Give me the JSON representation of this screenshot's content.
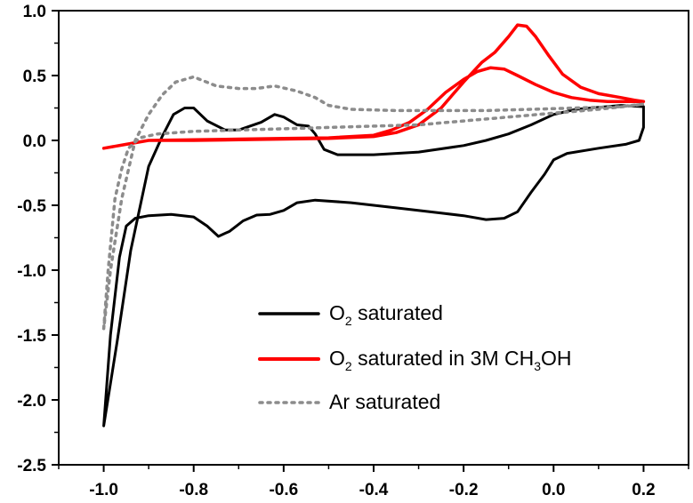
{
  "chart_data": {
    "type": "line",
    "title": "",
    "xlabel": "",
    "ylabel": "",
    "xlim": [
      -1.1,
      0.3
    ],
    "ylim": [
      -2.5,
      1.0
    ],
    "x_ticks": [
      -1.0,
      -0.8,
      -0.6,
      -0.4,
      -0.2,
      0.0,
      0.2
    ],
    "x_tick_labels": [
      "-1.0",
      "-0.8",
      "-0.6",
      "-0.4",
      "-0.2",
      "0.0",
      "0.2"
    ],
    "y_ticks": [
      1.0,
      0.5,
      0.0,
      -0.5,
      -1.0,
      -1.5,
      -2.0,
      -2.5
    ],
    "y_tick_labels": [
      "1.0",
      "0.5",
      "0.0",
      "-0.5",
      "-1.0",
      "-1.5",
      "-2.0",
      "-2.5"
    ],
    "grid": false,
    "legend_position": "bottom-right",
    "legend": [
      {
        "main": "O",
        "sub": "2",
        "rest": " saturated",
        "sub2": "",
        "tail": "",
        "series": 0
      },
      {
        "main": "O",
        "sub": "2",
        "rest": " saturated in 3M CH",
        "sub2": "3",
        "tail": "OH",
        "series": 1
      },
      {
        "main": "Ar saturated",
        "sub": "",
        "rest": "",
        "sub2": "",
        "tail": "",
        "series": 2
      }
    ],
    "series": [
      {
        "color": "#000000",
        "style": "solid",
        "points": [
          [
            -1.0,
            -2.2
          ],
          [
            -0.985,
            -1.5
          ],
          [
            -0.965,
            -0.9
          ],
          [
            -0.95,
            -0.66
          ],
          [
            -0.93,
            -0.6
          ],
          [
            -0.9,
            -0.58
          ],
          [
            -0.85,
            -0.57
          ],
          [
            -0.8,
            -0.59
          ],
          [
            -0.77,
            -0.66
          ],
          [
            -0.745,
            -0.74
          ],
          [
            -0.72,
            -0.7
          ],
          [
            -0.69,
            -0.62
          ],
          [
            -0.66,
            -0.575
          ],
          [
            -0.63,
            -0.57
          ],
          [
            -0.6,
            -0.54
          ],
          [
            -0.57,
            -0.48
          ],
          [
            -0.53,
            -0.46
          ],
          [
            -0.45,
            -0.48
          ],
          [
            -0.35,
            -0.52
          ],
          [
            -0.25,
            -0.56
          ],
          [
            -0.2,
            -0.58
          ],
          [
            -0.15,
            -0.61
          ],
          [
            -0.11,
            -0.6
          ],
          [
            -0.08,
            -0.55
          ],
          [
            -0.05,
            -0.4
          ],
          [
            -0.02,
            -0.26
          ],
          [
            0.0,
            -0.15
          ],
          [
            0.03,
            -0.1
          ],
          [
            0.1,
            -0.06
          ],
          [
            0.16,
            -0.03
          ],
          [
            0.19,
            0.0
          ],
          [
            0.2,
            0.1
          ],
          [
            0.2,
            0.26
          ],
          [
            0.15,
            0.27
          ],
          [
            0.05,
            0.24
          ],
          [
            0.0,
            0.2
          ],
          [
            -0.05,
            0.12
          ],
          [
            -0.1,
            0.05
          ],
          [
            -0.15,
            0.0
          ],
          [
            -0.2,
            -0.04
          ],
          [
            -0.3,
            -0.09
          ],
          [
            -0.4,
            -0.11
          ],
          [
            -0.48,
            -0.11
          ],
          [
            -0.51,
            -0.07
          ],
          [
            -0.53,
            0.05
          ],
          [
            -0.545,
            0.11
          ],
          [
            -0.57,
            0.12
          ],
          [
            -0.6,
            0.18
          ],
          [
            -0.62,
            0.2
          ],
          [
            -0.65,
            0.14
          ],
          [
            -0.7,
            0.08
          ],
          [
            -0.73,
            0.08
          ],
          [
            -0.77,
            0.15
          ],
          [
            -0.8,
            0.25
          ],
          [
            -0.82,
            0.25
          ],
          [
            -0.845,
            0.2
          ],
          [
            -0.87,
            0.03
          ],
          [
            -0.9,
            -0.2
          ],
          [
            -0.94,
            -0.85
          ],
          [
            -0.97,
            -1.55
          ],
          [
            -1.0,
            -2.2
          ]
        ]
      },
      {
        "color": "#ff0000",
        "style": "solid",
        "points": [
          [
            -1.0,
            -0.06
          ],
          [
            -0.95,
            -0.03
          ],
          [
            -0.9,
            0.0
          ],
          [
            -0.85,
            0.0
          ],
          [
            -0.8,
            0.0
          ],
          [
            -0.7,
            0.005
          ],
          [
            -0.6,
            0.01
          ],
          [
            -0.5,
            0.015
          ],
          [
            -0.4,
            0.03
          ],
          [
            -0.35,
            0.06
          ],
          [
            -0.3,
            0.12
          ],
          [
            -0.25,
            0.25
          ],
          [
            -0.2,
            0.45
          ],
          [
            -0.16,
            0.6
          ],
          [
            -0.13,
            0.68
          ],
          [
            -0.1,
            0.8
          ],
          [
            -0.08,
            0.89
          ],
          [
            -0.06,
            0.88
          ],
          [
            -0.04,
            0.8
          ],
          [
            -0.01,
            0.65
          ],
          [
            0.02,
            0.51
          ],
          [
            0.06,
            0.41
          ],
          [
            0.1,
            0.36
          ],
          [
            0.15,
            0.33
          ],
          [
            0.18,
            0.31
          ],
          [
            0.2,
            0.3
          ],
          [
            0.17,
            0.3
          ],
          [
            0.12,
            0.3
          ],
          [
            0.08,
            0.31
          ],
          [
            0.04,
            0.33
          ],
          [
            0.0,
            0.37
          ],
          [
            -0.04,
            0.43
          ],
          [
            -0.08,
            0.5
          ],
          [
            -0.11,
            0.55
          ],
          [
            -0.14,
            0.56
          ],
          [
            -0.17,
            0.53
          ],
          [
            -0.2,
            0.47
          ],
          [
            -0.24,
            0.37
          ],
          [
            -0.28,
            0.24
          ],
          [
            -0.32,
            0.14
          ],
          [
            -0.36,
            0.08
          ],
          [
            -0.4,
            0.04
          ],
          [
            -0.5,
            0.02
          ],
          [
            -0.6,
            0.015
          ],
          [
            -0.7,
            0.01
          ],
          [
            -0.8,
            0.005
          ],
          [
            -0.9,
            0.0
          ],
          [
            -0.95,
            -0.03
          ],
          [
            -1.0,
            -0.06
          ]
        ]
      },
      {
        "color": "#8c8c8c",
        "style": "dotted",
        "points": [
          [
            -1.0,
            -1.45
          ],
          [
            -0.99,
            -1.0
          ],
          [
            -0.975,
            -0.45
          ],
          [
            -0.96,
            -0.22
          ],
          [
            -0.945,
            -0.06
          ],
          [
            -0.92,
            0.02
          ],
          [
            -0.88,
            0.05
          ],
          [
            -0.8,
            0.07
          ],
          [
            -0.7,
            0.08
          ],
          [
            -0.6,
            0.09
          ],
          [
            -0.5,
            0.1
          ],
          [
            -0.4,
            0.11
          ],
          [
            -0.3,
            0.12
          ],
          [
            -0.2,
            0.15
          ],
          [
            -0.1,
            0.18
          ],
          [
            0.0,
            0.21
          ],
          [
            0.1,
            0.24
          ],
          [
            0.18,
            0.27
          ],
          [
            0.2,
            0.28
          ],
          [
            0.15,
            0.26
          ],
          [
            0.05,
            0.25
          ],
          [
            -0.05,
            0.24
          ],
          [
            -0.15,
            0.23
          ],
          [
            -0.25,
            0.23
          ],
          [
            -0.35,
            0.23
          ],
          [
            -0.45,
            0.24
          ],
          [
            -0.5,
            0.27
          ],
          [
            -0.53,
            0.33
          ],
          [
            -0.57,
            0.38
          ],
          [
            -0.62,
            0.42
          ],
          [
            -0.66,
            0.4
          ],
          [
            -0.7,
            0.4
          ],
          [
            -0.75,
            0.42
          ],
          [
            -0.8,
            0.49
          ],
          [
            -0.84,
            0.45
          ],
          [
            -0.87,
            0.35
          ],
          [
            -0.9,
            0.2
          ],
          [
            -0.93,
            0.0
          ],
          [
            -0.96,
            -0.45
          ],
          [
            -0.985,
            -1.0
          ],
          [
            -1.0,
            -1.45
          ]
        ]
      }
    ]
  }
}
